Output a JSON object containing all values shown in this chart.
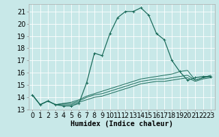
{
  "title": "",
  "xlabel": "Humidex (Indice chaleur)",
  "ylabel": "",
  "bg_color": "#c8e8e8",
  "grid_color": "#ffffff",
  "line_color": "#1a6b5a",
  "xlim": [
    -0.5,
    23.5
  ],
  "ylim": [
    13,
    21.6
  ],
  "xticks": [
    0,
    1,
    2,
    3,
    4,
    5,
    6,
    7,
    8,
    9,
    10,
    11,
    12,
    13,
    14,
    15,
    16,
    17,
    18,
    19,
    20,
    21,
    22,
    23
  ],
  "yticks": [
    13,
    14,
    15,
    16,
    17,
    18,
    19,
    20,
    21
  ],
  "series": [
    [
      14.2,
      13.4,
      13.7,
      13.4,
      13.3,
      13.3,
      13.5,
      15.2,
      17.6,
      17.4,
      19.2,
      20.5,
      21.0,
      21.0,
      21.3,
      20.7,
      19.2,
      18.7,
      17.0,
      16.1,
      15.4,
      15.6,
      15.7,
      15.7
    ],
    [
      14.2,
      13.4,
      13.7,
      13.4,
      13.5,
      13.6,
      13.8,
      14.1,
      14.3,
      14.5,
      14.7,
      14.9,
      15.1,
      15.3,
      15.5,
      15.6,
      15.7,
      15.8,
      15.9,
      16.1,
      16.2,
      15.4,
      15.6,
      15.8
    ],
    [
      14.2,
      13.4,
      13.7,
      13.4,
      13.5,
      13.5,
      13.7,
      14.0,
      14.2,
      14.3,
      14.5,
      14.7,
      14.9,
      15.1,
      15.3,
      15.4,
      15.5,
      15.5,
      15.6,
      15.7,
      15.8,
      15.4,
      15.6,
      15.7
    ],
    [
      14.2,
      13.4,
      13.7,
      13.4,
      13.4,
      13.4,
      13.6,
      13.8,
      14.0,
      14.1,
      14.3,
      14.5,
      14.7,
      14.9,
      15.1,
      15.2,
      15.3,
      15.3,
      15.4,
      15.5,
      15.6,
      15.3,
      15.5,
      15.6
    ]
  ],
  "marker": "+",
  "marker_size": 3.5,
  "font_size": 7.0,
  "label_size": 7.5,
  "linewidth_main": 0.9,
  "linewidth_flat": 0.7
}
